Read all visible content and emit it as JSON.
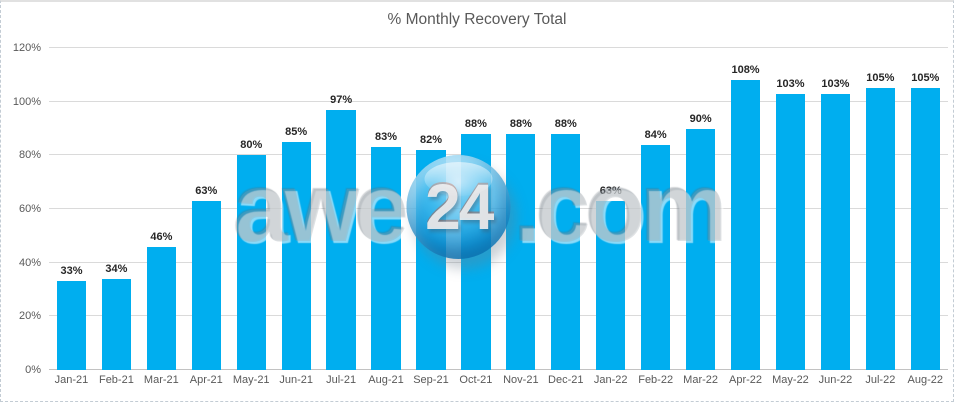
{
  "title": "% Monthly Recovery Total",
  "watermark": {
    "prefix": "awe",
    "badge": "24",
    "suffix": ".com"
  },
  "colors": {
    "bar": "#00AEEF",
    "title_text": "#595959",
    "axis_label": "#595959",
    "data_label": "#262626",
    "gridline": "#DADADA"
  },
  "chart_data": {
    "type": "bar",
    "title": "% Monthly Recovery Total",
    "categories": [
      "Jan-21",
      "Feb-21",
      "Mar-21",
      "Apr-21",
      "May-21",
      "Jun-21",
      "Jul-21",
      "Aug-21",
      "Sep-21",
      "Oct-21",
      "Nov-21",
      "Dec-21",
      "Jan-22",
      "Feb-22",
      "Mar-22",
      "Apr-22",
      "May-22",
      "Jun-22",
      "Jul-22",
      "Aug-22"
    ],
    "values": [
      33,
      34,
      46,
      63,
      80,
      85,
      97,
      83,
      82,
      88,
      88,
      88,
      63,
      84,
      90,
      108,
      103,
      103,
      105,
      105
    ],
    "data_labels": [
      "33%",
      "34%",
      "46%",
      "63%",
      "80%",
      "85%",
      "97%",
      "83%",
      "82%",
      "88%",
      "88%",
      "88%",
      "63%",
      "84%",
      "90%",
      "108%",
      "103%",
      "103%",
      "105%",
      "105%"
    ],
    "xlabel": "",
    "ylabel": "",
    "ylim": [
      0,
      120
    ],
    "ytick_step": 20,
    "yticks": [
      "0%",
      "20%",
      "40%",
      "60%",
      "80%",
      "100%",
      "120%"
    ],
    "grid": true,
    "legend": false,
    "bar_color": "#00AEEF"
  }
}
